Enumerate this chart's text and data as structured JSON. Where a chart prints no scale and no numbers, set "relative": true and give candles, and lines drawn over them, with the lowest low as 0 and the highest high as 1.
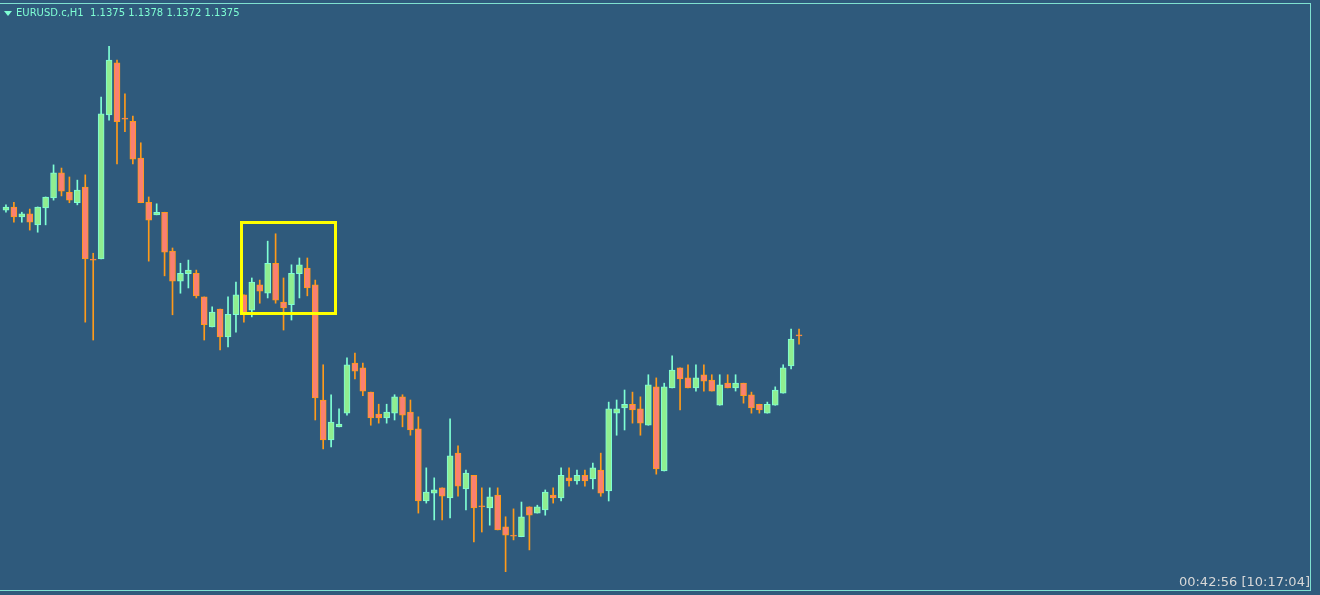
{
  "chart_data": {
    "type": "candlestick",
    "title": "EURUSD.c,H1  1.1375 1.1378 1.1372 1.1375",
    "annotations": [
      "00:42:56 [10:17:04]"
    ],
    "relative": true,
    "categories": [
      null,
      null,
      null,
      null,
      null,
      null,
      null,
      null,
      null,
      null,
      null,
      null,
      null,
      null,
      null,
      null,
      null,
      null,
      null,
      null,
      null,
      null,
      null,
      null,
      null,
      null,
      null,
      null,
      null,
      null,
      null,
      null,
      null,
      null,
      null,
      null,
      null,
      null,
      null,
      null,
      null,
      null,
      null,
      null,
      null,
      null,
      null,
      null,
      null,
      null,
      null,
      null,
      null,
      null,
      null,
      null,
      null,
      null,
      null,
      null,
      null,
      null,
      null,
      null,
      null,
      null,
      null,
      null,
      null,
      null,
      null,
      null,
      null,
      null,
      null,
      null,
      null,
      null,
      null,
      null,
      null,
      null,
      null,
      null,
      null,
      null,
      null,
      null,
      null,
      null,
      null,
      null,
      null,
      null,
      null,
      null,
      null,
      null,
      null,
      null,
      null
    ],
    "ohlc": [
      [
        0.688,
        0.698,
        0.684,
        0.694
      ],
      [
        0.694,
        0.703,
        0.665,
        0.675
      ],
      [
        0.675,
        0.684,
        0.665,
        0.681
      ],
      [
        0.681,
        0.69,
        0.65,
        0.665
      ],
      [
        0.66,
        0.694,
        0.646,
        0.694
      ],
      [
        0.692,
        0.713,
        0.66,
        0.713
      ],
      [
        0.711,
        0.774,
        0.707,
        0.759
      ],
      [
        0.759,
        0.768,
        0.715,
        0.724
      ],
      [
        0.722,
        0.751,
        0.702,
        0.707
      ],
      [
        0.702,
        0.745,
        0.698,
        0.726
      ],
      [
        0.732,
        0.755,
        0.475,
        0.595
      ],
      [
        0.593,
        0.606,
        0.441,
        0.593
      ],
      [
        0.595,
        0.903,
        0.595,
        0.871
      ],
      [
        0.869,
        1,
        0.859,
        0.973
      ],
      [
        0.968,
        0.973,
        0.776,
        0.856
      ],
      [
        0.861,
        0.909,
        0.837,
        0.861
      ],
      [
        0.857,
        0.867,
        0.776,
        0.785
      ],
      [
        0.787,
        0.816,
        0.702,
        0.702
      ],
      [
        0.703,
        0.713,
        0.591,
        0.669
      ],
      [
        0.679,
        0.7,
        0.679,
        0.684
      ],
      [
        0.684,
        0.684,
        0.563,
        0.608
      ],
      [
        0.61,
        0.616,
        0.489,
        0.553
      ],
      [
        0.553,
        0.587,
        0.53,
        0.568
      ],
      [
        0.567,
        0.593,
        0.54,
        0.574
      ],
      [
        0.568,
        0.574,
        0.521,
        0.525
      ],
      [
        0.523,
        0.523,
        0.441,
        0.47
      ],
      [
        0.466,
        0.504,
        0.466,
        0.494
      ],
      [
        0.5,
        0.5,
        0.422,
        0.447
      ],
      [
        0.447,
        0.523,
        0.428,
        0.49
      ],
      [
        0.489,
        0.551,
        0.456,
        0.527
      ],
      [
        0.527,
        0.527,
        0.475,
        0.492
      ],
      [
        0.498,
        0.559,
        0.485,
        0.551
      ],
      [
        0.546,
        0.555,
        0.511,
        0.534
      ],
      [
        0.53,
        0.629,
        0.521,
        0.587
      ],
      [
        0.587,
        0.643,
        0.511,
        0.517
      ],
      [
        0.513,
        0.559,
        0.46,
        0.502
      ],
      [
        0.508,
        0.584,
        0.479,
        0.568
      ],
      [
        0.567,
        0.597,
        0.521,
        0.584
      ],
      [
        0.578,
        0.597,
        0.525,
        0.54
      ],
      [
        0.546,
        0.555,
        0.289,
        0.331
      ],
      [
        0.327,
        0.394,
        0.234,
        0.251
      ],
      [
        0.251,
        0.337,
        0.238,
        0.285
      ],
      [
        0.276,
        0.31,
        0.276,
        0.281
      ],
      [
        0.302,
        0.407,
        0.298,
        0.394
      ],
      [
        0.397,
        0.416,
        0.367,
        0.382
      ],
      [
        0.388,
        0.397,
        0.335,
        0.344
      ],
      [
        0.342,
        0.342,
        0.279,
        0.293
      ],
      [
        0.3,
        0.319,
        0.283,
        0.293
      ],
      [
        0.293,
        0.319,
        0.283,
        0.304
      ],
      [
        0.302,
        0.337,
        0.289,
        0.333
      ],
      [
        0.333,
        0.337,
        0.276,
        0.298
      ],
      [
        0.304,
        0.327,
        0.26,
        0.27
      ],
      [
        0.272,
        0.295,
        0.112,
        0.135
      ],
      [
        0.135,
        0.198,
        0.131,
        0.152
      ],
      [
        0.15,
        0.179,
        0.099,
        0.156
      ],
      [
        0.16,
        0.16,
        0.099,
        0.144
      ],
      [
        0.141,
        0.291,
        0.103,
        0.221
      ],
      [
        0.226,
        0.24,
        0.144,
        0.163
      ],
      [
        0.158,
        0.194,
        0.118,
        0.188
      ],
      [
        0.184,
        0.184,
        0.057,
        0.122
      ],
      [
        0.124,
        0.16,
        0.076,
        0.124
      ],
      [
        0.122,
        0.16,
        0.089,
        0.143
      ],
      [
        0.146,
        0.16,
        0.08,
        0.08
      ],
      [
        0.086,
        0.105,
        0,
        0.07
      ],
      [
        0.068,
        0.12,
        0.061,
        0.068
      ],
      [
        0.067,
        0.133,
        0.067,
        0.105
      ],
      [
        0.124,
        0.124,
        0.042,
        0.108
      ],
      [
        0.112,
        0.127,
        0.112,
        0.124
      ],
      [
        0.118,
        0.156,
        0.108,
        0.152
      ],
      [
        0.146,
        0.16,
        0.131,
        0.141
      ],
      [
        0.141,
        0.198,
        0.135,
        0.184
      ],
      [
        0.179,
        0.198,
        0.163,
        0.173
      ],
      [
        0.173,
        0.194,
        0.167,
        0.184
      ],
      [
        0.184,
        0.194,
        0.163,
        0.173
      ],
      [
        0.177,
        0.207,
        0.158,
        0.198
      ],
      [
        0.194,
        0.226,
        0.144,
        0.15
      ],
      [
        0.154,
        0.323,
        0.135,
        0.31
      ],
      [
        0.302,
        0.327,
        0.26,
        0.31
      ],
      [
        0.312,
        0.346,
        0.27,
        0.319
      ],
      [
        0.319,
        0.342,
        0.283,
        0.308
      ],
      [
        0.31,
        0.333,
        0.26,
        0.283
      ],
      [
        0.279,
        0.375,
        0.279,
        0.356
      ],
      [
        0.352,
        0.369,
        0.186,
        0.196
      ],
      [
        0.192,
        0.359,
        0.192,
        0.352
      ],
      [
        0.35,
        0.411,
        0.35,
        0.384
      ],
      [
        0.388,
        0.388,
        0.308,
        0.367
      ],
      [
        0.369,
        0.394,
        0.35,
        0.35
      ],
      [
        0.35,
        0.394,
        0.344,
        0.369
      ],
      [
        0.375,
        0.394,
        0.344,
        0.363
      ],
      [
        0.365,
        0.375,
        0.344,
        0.344
      ],
      [
        0.317,
        0.375,
        0.317,
        0.356
      ],
      [
        0.359,
        0.375,
        0.35,
        0.35
      ],
      [
        0.35,
        0.375,
        0.344,
        0.359
      ],
      [
        0.359,
        0.359,
        0.321,
        0.335
      ],
      [
        0.337,
        0.342,
        0.302,
        0.312
      ],
      [
        0.319,
        0.319,
        0.302,
        0.308
      ],
      [
        0.302,
        0.323,
        0.302,
        0.319
      ],
      [
        0.317,
        0.352,
        0.317,
        0.346
      ],
      [
        0.34,
        0.394,
        0.34,
        0.388
      ],
      [
        0.392,
        0.462,
        0.386,
        0.443
      ],
      [
        0.449,
        0.462,
        0.433,
        0.449
      ]
    ]
  }
}
